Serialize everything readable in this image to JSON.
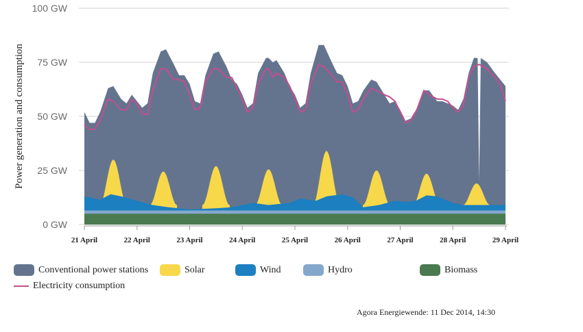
{
  "chart_data": {
    "type": "area",
    "ylabel": "Power generation and consumption",
    "y_ticks": [
      "0 GW",
      "25 GW",
      "50 GW",
      "75 GW",
      "100 GW"
    ],
    "ylim": [
      0,
      100
    ],
    "x_unit": "days from 21 April",
    "x_ticks": [
      {
        "x": 0,
        "label": "21 April"
      },
      {
        "x": 1,
        "label": "22 April"
      },
      {
        "x": 2,
        "label": "23 April"
      },
      {
        "x": 3,
        "label": "24 April"
      },
      {
        "x": 4,
        "label": "25 April"
      },
      {
        "x": 5,
        "label": "26 April"
      },
      {
        "x": 6,
        "label": "27 April"
      },
      {
        "x": 7,
        "label": "28 April"
      },
      {
        "x": 8,
        "label": "29 April"
      }
    ],
    "xlim": [
      0,
      8
    ],
    "series": [
      {
        "name": "Biomass",
        "color": "#4a7a4f",
        "kind": "area-abs",
        "points": [
          [
            0,
            5
          ],
          [
            8,
            5
          ]
        ]
      },
      {
        "name": "Hydro",
        "color": "#84a8cc",
        "kind": "area-abs",
        "points": [
          [
            0,
            6.5
          ],
          [
            8,
            6.5
          ]
        ]
      },
      {
        "name": "Wind",
        "color": "#1c7fc0",
        "kind": "area-abs",
        "points": [
          [
            0,
            13
          ],
          [
            0.3,
            11.5
          ],
          [
            0.5,
            14
          ],
          [
            0.7,
            13
          ],
          [
            1.0,
            11
          ],
          [
            1.3,
            9
          ],
          [
            1.6,
            8
          ],
          [
            2.0,
            7
          ],
          [
            2.5,
            7.5
          ],
          [
            2.8,
            8
          ],
          [
            3.2,
            10
          ],
          [
            3.5,
            9
          ],
          [
            3.9,
            10
          ],
          [
            4.1,
            12
          ],
          [
            4.4,
            11
          ],
          [
            4.6,
            13
          ],
          [
            4.9,
            14
          ],
          [
            5.1,
            12.5
          ],
          [
            5.3,
            8
          ],
          [
            5.6,
            9
          ],
          [
            5.9,
            11
          ],
          [
            6.1,
            10.5
          ],
          [
            6.3,
            11
          ],
          [
            6.5,
            13.5
          ],
          [
            6.7,
            13
          ],
          [
            7.0,
            10
          ],
          [
            7.2,
            9
          ],
          [
            7.5,
            9
          ],
          [
            7.8,
            9
          ],
          [
            8,
            9
          ]
        ]
      },
      {
        "name": "Solar",
        "color": "#f7d84a",
        "kind": "peaks",
        "peaks": [
          [
            0.55,
            30
          ],
          [
            1.5,
            24.5
          ],
          [
            2.5,
            27
          ],
          [
            3.5,
            25.5
          ],
          [
            4.6,
            34
          ],
          [
            5.55,
            25
          ],
          [
            6.5,
            23.5
          ],
          [
            7.45,
            19
          ]
        ]
      },
      {
        "name": "Conventional power stations",
        "color": "#64748f",
        "kind": "area-abs",
        "points": [
          [
            0,
            52
          ],
          [
            0.1,
            47
          ],
          [
            0.2,
            47
          ],
          [
            0.3,
            52
          ],
          [
            0.45,
            63
          ],
          [
            0.55,
            64
          ],
          [
            0.7,
            58
          ],
          [
            0.8,
            56
          ],
          [
            0.9,
            60
          ],
          [
            1.0,
            57
          ],
          [
            1.1,
            54
          ],
          [
            1.2,
            56
          ],
          [
            1.3,
            70
          ],
          [
            1.45,
            80
          ],
          [
            1.55,
            81
          ],
          [
            1.7,
            74
          ],
          [
            1.8,
            69
          ],
          [
            1.9,
            69
          ],
          [
            2.0,
            65
          ],
          [
            2.1,
            57
          ],
          [
            2.2,
            56
          ],
          [
            2.3,
            69
          ],
          [
            2.45,
            79
          ],
          [
            2.55,
            80
          ],
          [
            2.7,
            73
          ],
          [
            2.8,
            67
          ],
          [
            2.9,
            65
          ],
          [
            3.0,
            60
          ],
          [
            3.1,
            54
          ],
          [
            3.2,
            56
          ],
          [
            3.3,
            70
          ],
          [
            3.45,
            77
          ],
          [
            3.5,
            77
          ],
          [
            3.58,
            75
          ],
          [
            3.65,
            76
          ],
          [
            3.8,
            70
          ],
          [
            3.9,
            64
          ],
          [
            4.0,
            60
          ],
          [
            4.1,
            54
          ],
          [
            4.2,
            56
          ],
          [
            4.3,
            70
          ],
          [
            4.45,
            83
          ],
          [
            4.55,
            83
          ],
          [
            4.7,
            75
          ],
          [
            4.8,
            70
          ],
          [
            4.9,
            69
          ],
          [
            5.0,
            64
          ],
          [
            5.1,
            56
          ],
          [
            5.2,
            57
          ],
          [
            5.3,
            62
          ],
          [
            5.45,
            67
          ],
          [
            5.55,
            66
          ],
          [
            5.7,
            60
          ],
          [
            5.8,
            56
          ],
          [
            5.9,
            57
          ],
          [
            6.0,
            53
          ],
          [
            6.1,
            48
          ],
          [
            6.2,
            49
          ],
          [
            6.3,
            53
          ],
          [
            6.45,
            62
          ],
          [
            6.55,
            62
          ],
          [
            6.7,
            57
          ],
          [
            6.8,
            57
          ],
          [
            6.9,
            56
          ],
          [
            7.0,
            55
          ],
          [
            7.1,
            53
          ],
          [
            7.2,
            58
          ],
          [
            7.3,
            70
          ],
          [
            7.4,
            77
          ],
          [
            7.47,
            77
          ],
          [
            7.5,
            20
          ],
          [
            7.53,
            77
          ],
          [
            7.65,
            75
          ],
          [
            7.8,
            70
          ],
          [
            7.9,
            67
          ],
          [
            8.0,
            64
          ]
        ]
      },
      {
        "name": "Electricity consumption",
        "color": "#c24f8f",
        "kind": "line",
        "points": [
          [
            0,
            46
          ],
          [
            0.1,
            44
          ],
          [
            0.2,
            44
          ],
          [
            0.3,
            48
          ],
          [
            0.45,
            58
          ],
          [
            0.55,
            57
          ],
          [
            0.7,
            53
          ],
          [
            0.8,
            53
          ],
          [
            0.9,
            58
          ],
          [
            1.0,
            56
          ],
          [
            1.1,
            51
          ],
          [
            1.2,
            51
          ],
          [
            1.3,
            62
          ],
          [
            1.45,
            72
          ],
          [
            1.55,
            72
          ],
          [
            1.7,
            67
          ],
          [
            1.8,
            67
          ],
          [
            1.9,
            66
          ],
          [
            2.0,
            60
          ],
          [
            2.1,
            53
          ],
          [
            2.2,
            54
          ],
          [
            2.3,
            66
          ],
          [
            2.45,
            72
          ],
          [
            2.55,
            72
          ],
          [
            2.7,
            68
          ],
          [
            2.8,
            68
          ],
          [
            2.9,
            63
          ],
          [
            3.0,
            58
          ],
          [
            3.1,
            52
          ],
          [
            3.2,
            54
          ],
          [
            3.3,
            65
          ],
          [
            3.45,
            72
          ],
          [
            3.5,
            72
          ],
          [
            3.58,
            68
          ],
          [
            3.65,
            70
          ],
          [
            3.8,
            68
          ],
          [
            3.9,
            64
          ],
          [
            4.0,
            58
          ],
          [
            4.1,
            52
          ],
          [
            4.2,
            53
          ],
          [
            4.3,
            65
          ],
          [
            4.45,
            74
          ],
          [
            4.55,
            73
          ],
          [
            4.7,
            69
          ],
          [
            4.8,
            66
          ],
          [
            4.9,
            66
          ],
          [
            5.0,
            60
          ],
          [
            5.1,
            52
          ],
          [
            5.2,
            53
          ],
          [
            5.3,
            58
          ],
          [
            5.45,
            63
          ],
          [
            5.55,
            62
          ],
          [
            5.7,
            60
          ],
          [
            5.8,
            59
          ],
          [
            5.9,
            57
          ],
          [
            6.0,
            52
          ],
          [
            6.1,
            47
          ],
          [
            6.2,
            48
          ],
          [
            6.3,
            52
          ],
          [
            6.45,
            62
          ],
          [
            6.55,
            60
          ],
          [
            6.7,
            58
          ],
          [
            6.8,
            58
          ],
          [
            6.9,
            57
          ],
          [
            7.0,
            54
          ],
          [
            7.1,
            52
          ],
          [
            7.2,
            55
          ],
          [
            7.3,
            68
          ],
          [
            7.4,
            73
          ],
          [
            7.5,
            74
          ],
          [
            7.65,
            72
          ],
          [
            7.8,
            68
          ],
          [
            7.9,
            65
          ],
          [
            8.0,
            57
          ]
        ]
      }
    ],
    "legend": [
      {
        "label": "Conventional power stations",
        "color": "#64748f",
        "type": "area"
      },
      {
        "label": "Solar",
        "color": "#f7d84a",
        "type": "area"
      },
      {
        "label": "Wind",
        "color": "#1c7fc0",
        "type": "area"
      },
      {
        "label": "Hydro",
        "color": "#84a8cc",
        "type": "area"
      },
      {
        "label": "Biomass",
        "color": "#4a7a4f",
        "type": "area"
      },
      {
        "label": "Electricity consumption",
        "color": "#c24f8f",
        "type": "line"
      }
    ]
  },
  "source": "Agora Energiewende: 11 Dec 2014, 14:30"
}
